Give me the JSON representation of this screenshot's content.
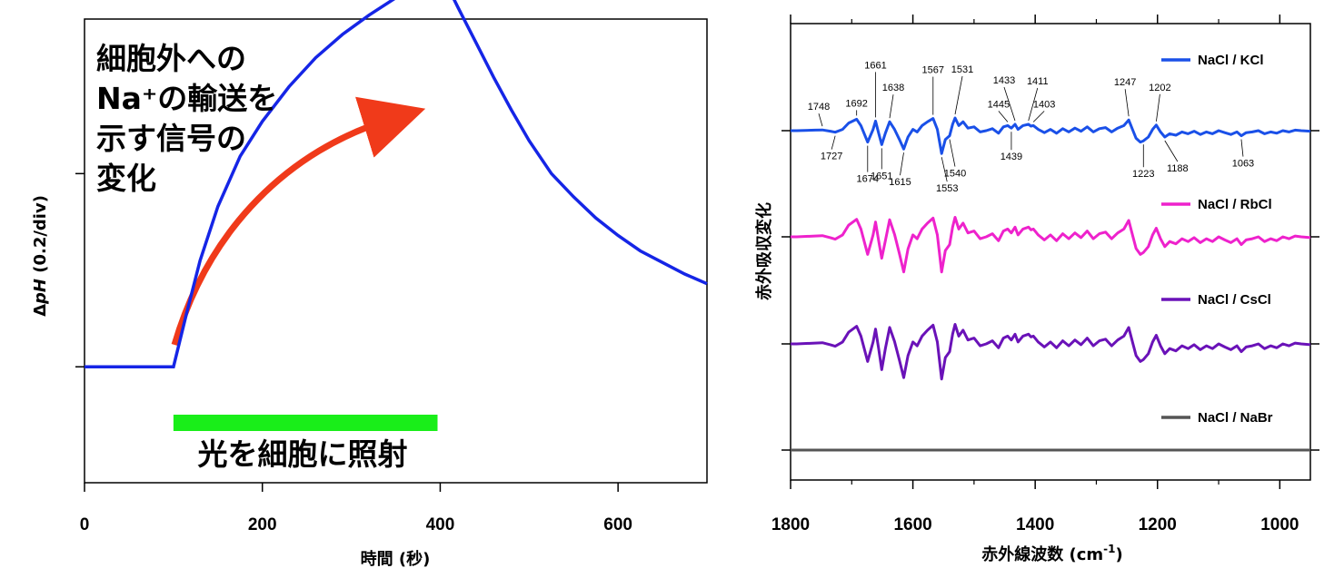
{
  "chart_data": [
    {
      "type": "line",
      "xlabel": "時間 (秒)",
      "ylabel_prefix": "Δ",
      "ylabel_italic": "pH",
      "ylabel_suffix": " (0.2/div)",
      "xlim": [
        0,
        700
      ],
      "ylim": [
        -0.6,
        1.8
      ],
      "xticks": [
        0,
        200,
        400,
        600
      ],
      "xtick_labels": [
        "0",
        "200",
        "400",
        "600"
      ],
      "yticks": [
        0,
        1,
        2
      ],
      "grid": false,
      "annotation_lines": [
        "細胞外への",
        "Na⁺の輸送を",
        "示す信号の",
        "変化"
      ],
      "bar_label": "光を細胞に照射",
      "illumination": {
        "start": 100,
        "end": 397
      },
      "colors": {
        "line": "#1525e6",
        "arrow": "#f03a1a",
        "bar": "#19ee19"
      },
      "series": [
        {
          "x": [
            0,
            50,
            100,
            115,
            130,
            150,
            175,
            200,
            230,
            260,
            290,
            320,
            350,
            375,
            395,
            405,
            420,
            440,
            460,
            480,
            500,
            525,
            550,
            575,
            600,
            625,
            650,
            675,
            700
          ],
          "y": [
            0,
            0,
            0,
            0.28,
            0.55,
            0.83,
            1.09,
            1.27,
            1.45,
            1.6,
            1.72,
            1.82,
            1.91,
            1.98,
            2.04,
            2.0,
            1.86,
            1.68,
            1.5,
            1.33,
            1.17,
            1.0,
            0.88,
            0.77,
            0.68,
            0.6,
            0.54,
            0.48,
            0.43
          ]
        }
      ]
    },
    {
      "type": "line",
      "xlabel": "赤外線波数 (cm",
      "xlabel_sup": "-1",
      "xlabel_tail": ")",
      "ylabel": "赤外吸収変化",
      "xlim": [
        1800,
        950
      ],
      "xticks": [
        1800,
        1600,
        1400,
        1200,
        1000
      ],
      "xtick_labels": [
        "1800",
        "1600",
        "1400",
        "1200",
        "1000"
      ],
      "minor_xticks": [
        1700,
        1500,
        1300,
        1100
      ],
      "grid": false,
      "legend_placement": "right of each trace",
      "series": [
        {
          "name": "NaCl / KCl",
          "color": "#1a50e8"
        },
        {
          "name": "NaCl / RbCl",
          "color": "#ee22cc"
        },
        {
          "name": "NaCl / CsCl",
          "color": "#6a12b8"
        },
        {
          "name": "NaCl / NaBr",
          "color": "#555555"
        }
      ],
      "baseline_trace": {
        "x": [
          1800,
          1790,
          1760,
          1748,
          1735,
          1727,
          1715,
          1705,
          1692,
          1685,
          1674,
          1665,
          1661,
          1656,
          1651,
          1645,
          1638,
          1630,
          1622,
          1615,
          1608,
          1600,
          1593,
          1585,
          1576,
          1567,
          1560,
          1553,
          1547,
          1540,
          1535,
          1531,
          1525,
          1518,
          1510,
          1500,
          1490,
          1480,
          1470,
          1460,
          1452,
          1445,
          1439,
          1433,
          1428,
          1420,
          1411,
          1407,
          1403,
          1395,
          1385,
          1375,
          1365,
          1355,
          1345,
          1335,
          1325,
          1315,
          1305,
          1295,
          1285,
          1275,
          1265,
          1255,
          1247,
          1240,
          1235,
          1228,
          1223,
          1215,
          1208,
          1202,
          1195,
          1188,
          1180,
          1170,
          1160,
          1150,
          1140,
          1130,
          1120,
          1110,
          1100,
          1090,
          1080,
          1070,
          1063,
          1055,
          1045,
          1035,
          1025,
          1015,
          1005,
          995,
          985,
          975,
          965,
          950
        ],
        "y": [
          0,
          0,
          0.02,
          0.03,
          -0.02,
          -0.06,
          0.05,
          0.3,
          0.45,
          0.2,
          -0.45,
          0.05,
          0.38,
          -0.1,
          -0.55,
          -0.1,
          0.35,
          0.05,
          -0.35,
          -0.72,
          -0.25,
          0.05,
          -0.05,
          0.2,
          0.35,
          0.48,
          0.05,
          -0.9,
          -0.35,
          -0.2,
          0.25,
          0.5,
          0.2,
          0.35,
          0.1,
          0.15,
          -0.05,
          0.0,
          0.08,
          -0.1,
          0.15,
          0.2,
          0.1,
          0.25,
          0.05,
          0.2,
          0.25,
          0.18,
          0.2,
          0.05,
          -0.08,
          0.05,
          -0.1,
          0.08,
          -0.05,
          0.1,
          -0.02,
          0.15,
          -0.05,
          0.08,
          0.12,
          -0.05,
          0.1,
          0.2,
          0.42,
          0.0,
          -0.3,
          -0.45,
          -0.4,
          -0.25,
          0.05,
          0.22,
          -0.05,
          -0.25,
          -0.12,
          -0.18,
          -0.05,
          -0.12,
          -0.02,
          -0.15,
          -0.05,
          -0.12,
          0.0,
          -0.08,
          -0.15,
          -0.05,
          -0.2,
          -0.08,
          -0.05,
          0.0,
          -0.12,
          -0.05,
          -0.1,
          0.0,
          -0.05,
          0.02,
          0.0,
          -0.02
        ]
      },
      "peaks": [
        {
          "label": "1748",
          "x": 1748,
          "pos": "above"
        },
        {
          "label": "1727",
          "x": 1727,
          "pos": "below"
        },
        {
          "label": "1692",
          "x": 1692,
          "pos": "above"
        },
        {
          "label": "1674",
          "x": 1674,
          "pos": "below"
        },
        {
          "label": "1661",
          "x": 1661,
          "pos": "above"
        },
        {
          "label": "1651",
          "x": 1651,
          "pos": "below"
        },
        {
          "label": "1638",
          "x": 1638,
          "pos": "above"
        },
        {
          "label": "1615",
          "x": 1615,
          "pos": "below"
        },
        {
          "label": "1567",
          "x": 1567,
          "pos": "above"
        },
        {
          "label": "1553",
          "x": 1553,
          "pos": "below"
        },
        {
          "label": "1531",
          "x": 1531,
          "pos": "above"
        },
        {
          "label": "1540",
          "x": 1540,
          "pos": "below"
        },
        {
          "label": "1445",
          "x": 1445,
          "pos": "above"
        },
        {
          "label": "1433",
          "x": 1433,
          "pos": "above"
        },
        {
          "label": "1411",
          "x": 1411,
          "pos": "above"
        },
        {
          "label": "1403",
          "x": 1403,
          "pos": "above"
        },
        {
          "label": "1439",
          "x": 1439,
          "pos": "below"
        },
        {
          "label": "1247",
          "x": 1247,
          "pos": "above"
        },
        {
          "label": "1202",
          "x": 1202,
          "pos": "above"
        },
        {
          "label": "1223",
          "x": 1223,
          "pos": "below"
        },
        {
          "label": "1188",
          "x": 1188,
          "pos": "below"
        },
        {
          "label": "1063",
          "x": 1063,
          "pos": "below"
        }
      ]
    }
  ]
}
